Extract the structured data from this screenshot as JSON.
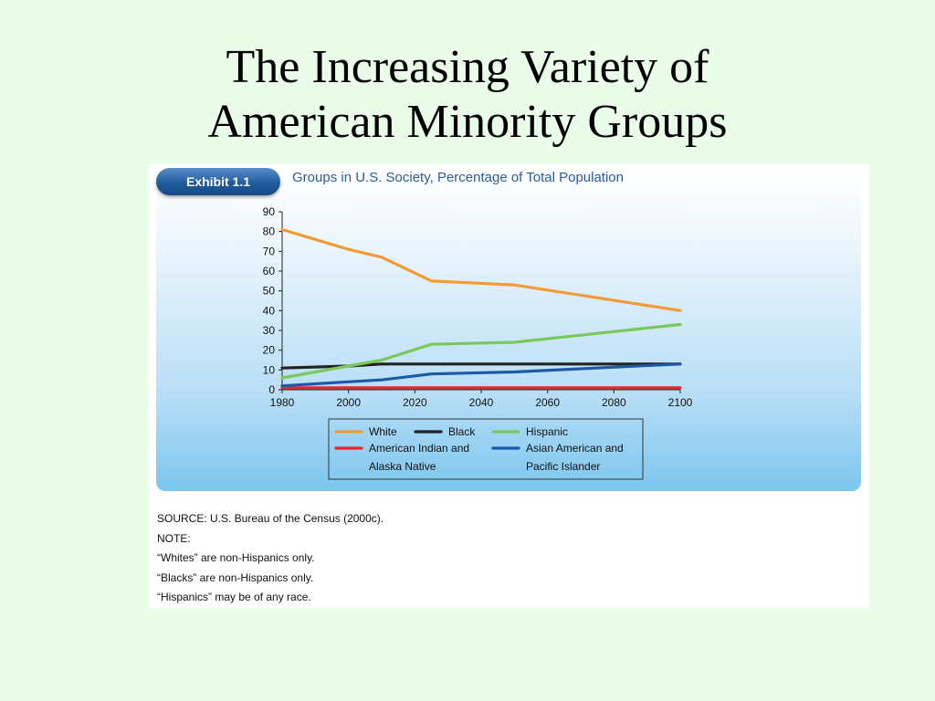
{
  "slide": {
    "title_line1": "The Increasing Variety of",
    "title_line2": "American Minority Groups"
  },
  "exhibit": {
    "badge": "Exhibit 1.1",
    "heading": "Groups in U.S. Society, Percentage of Total Population"
  },
  "chart_data": {
    "type": "line",
    "title": "Groups in U.S. Society, Percentage of Total Population",
    "xlabel": "",
    "ylabel": "",
    "x": [
      1980,
      2000,
      2010,
      2025,
      2050,
      2100
    ],
    "xticks": [
      1980,
      2000,
      2020,
      2040,
      2060,
      2080,
      2100
    ],
    "yticks": [
      0,
      10,
      20,
      30,
      40,
      50,
      60,
      70,
      80,
      90
    ],
    "xlim": [
      1980,
      2100
    ],
    "ylim": [
      0,
      90
    ],
    "grid": false,
    "legend_position": "bottom-center",
    "series": [
      {
        "name": "White",
        "color": "#f39a36",
        "values": [
          81,
          71,
          67,
          55,
          53,
          40
        ]
      },
      {
        "name": "Black",
        "color": "#222222",
        "values": [
          11,
          12,
          13,
          13,
          13,
          13
        ]
      },
      {
        "name": "Hispanic",
        "color": "#7ac75a",
        "values": [
          6,
          12,
          15,
          23,
          24,
          33
        ]
      },
      {
        "name": "American Indian and Alaska Native",
        "color": "#e8262c",
        "values": [
          1,
          1,
          1,
          1,
          1,
          1
        ]
      },
      {
        "name": "Asian American and Pacific Islander",
        "color": "#1d5aa6",
        "values": [
          2,
          4,
          5,
          8,
          9,
          13
        ]
      }
    ]
  },
  "legend": {
    "rows": [
      [
        "White",
        "Black",
        "Hispanic"
      ],
      [
        "American Indian and",
        "Asian American and"
      ],
      [
        "Alaska Native",
        "Pacific Islander"
      ]
    ]
  },
  "notes": {
    "source": "SOURCE: U.S. Bureau of the Census (2000c).",
    "note_label": "NOTE:",
    "lines": [
      "“Whites” are non-Hispanics only.",
      "“Blacks” are non-Hispanics only.",
      "“Hispanics” may be of any race."
    ]
  }
}
